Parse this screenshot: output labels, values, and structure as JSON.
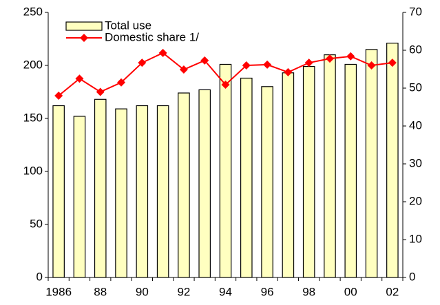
{
  "chart_data": {
    "type": "bar+line",
    "categories": [
      "1986",
      null,
      "88",
      null,
      "90",
      null,
      "92",
      null,
      "94",
      null,
      "96",
      null,
      "98",
      null,
      "00",
      null,
      "02"
    ],
    "series": [
      {
        "name": "Total use",
        "type": "bar",
        "color": "#ffffc0",
        "axis": "y",
        "values": [
          162,
          152,
          168,
          159,
          162,
          162,
          174,
          177,
          201,
          188,
          180,
          193,
          199,
          210,
          201,
          215,
          221
        ]
      },
      {
        "name": "Domestic share 1/",
        "type": "line",
        "color": "#ff0000",
        "axis": "y2",
        "values": [
          48,
          52.5,
          49,
          51.5,
          56.7,
          59.3,
          54.9,
          57.3,
          50.9,
          56,
          56.2,
          54.2,
          56.7,
          57.8,
          58.4,
          56,
          56.7
        ]
      }
    ],
    "ylim": [
      0,
      250
    ],
    "yticks": [
      0,
      50,
      100,
      150,
      200,
      250
    ],
    "y2lim": [
      0,
      70
    ],
    "y2ticks": [
      0,
      10,
      20,
      30,
      40,
      50,
      60,
      70
    ],
    "legend": "top-left"
  }
}
